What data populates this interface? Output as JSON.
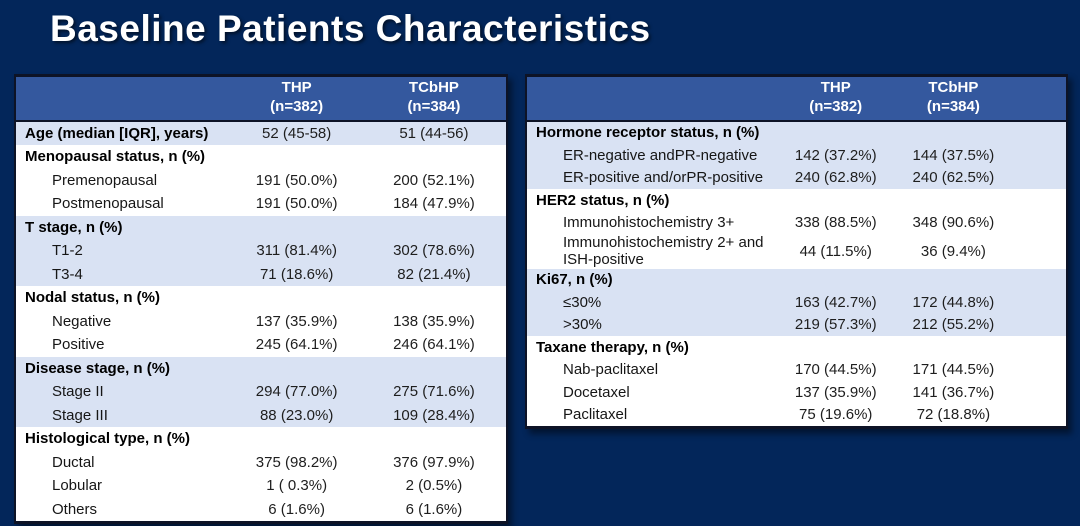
{
  "slide": {
    "title": "Baseline Patients Characteristics",
    "colors": {
      "background": "#03265A",
      "table_header": "#34589E",
      "shaded_row": "#D9E2F3",
      "plain_row": "#FFFFFF",
      "title_text": "#FFFFFF"
    }
  },
  "left_table": {
    "header": {
      "label": "",
      "thp_line1": "THP",
      "thp_line2": "(n=382)",
      "tcbhp_line1": "TCbHP",
      "tcbhp_line2": "(n=384)"
    },
    "sections": [
      {
        "shade": "blue",
        "rows": [
          {
            "label": "Age (median [IQR], years)",
            "bold": true,
            "indent": false,
            "values": [
              "52 (45-58)",
              "51 (44-56)"
            ]
          }
        ]
      },
      {
        "shade": "white",
        "rows": [
          {
            "label": "Menopausal status, n (%)",
            "bold": true,
            "indent": false,
            "values": [
              "",
              ""
            ]
          },
          {
            "label": "Premenopausal",
            "bold": false,
            "indent": true,
            "values": [
              "191 (50.0%)",
              "200 (52.1%)"
            ]
          },
          {
            "label": "Postmenopausal",
            "bold": false,
            "indent": true,
            "values": [
              "191 (50.0%)",
              "184 (47.9%)"
            ]
          }
        ]
      },
      {
        "shade": "blue",
        "rows": [
          {
            "label": "T stage, n (%)",
            "bold": true,
            "indent": false,
            "values": [
              "",
              ""
            ]
          },
          {
            "label": "T1-2",
            "bold": false,
            "indent": true,
            "values": [
              "311 (81.4%)",
              "302 (78.6%)"
            ]
          },
          {
            "label": "T3-4",
            "bold": false,
            "indent": true,
            "values": [
              "71 (18.6%)",
              "82 (21.4%)"
            ]
          }
        ]
      },
      {
        "shade": "white",
        "rows": [
          {
            "label": "Nodal status, n (%)",
            "bold": true,
            "indent": false,
            "values": [
              "",
              ""
            ]
          },
          {
            "label": "Negative",
            "bold": false,
            "indent": true,
            "values": [
              "137 (35.9%)",
              "138 (35.9%)"
            ]
          },
          {
            "label": "Positive",
            "bold": false,
            "indent": true,
            "values": [
              "245 (64.1%)",
              "246 (64.1%)"
            ]
          }
        ]
      },
      {
        "shade": "blue",
        "rows": [
          {
            "label": "Disease stage, n (%)",
            "bold": true,
            "indent": false,
            "values": [
              "",
              ""
            ]
          },
          {
            "label": "Stage II",
            "bold": false,
            "indent": true,
            "values": [
              "294 (77.0%)",
              "275 (71.6%)"
            ]
          },
          {
            "label": "Stage III",
            "bold": false,
            "indent": true,
            "values": [
              "88 (23.0%)",
              "109 (28.4%)"
            ]
          }
        ]
      },
      {
        "shade": "white",
        "rows": [
          {
            "label": "Histological type, n (%)",
            "bold": true,
            "indent": false,
            "values": [
              "",
              ""
            ]
          },
          {
            "label": "Ductal",
            "bold": false,
            "indent": true,
            "values": [
              "375 (98.2%)",
              "376 (97.9%)"
            ]
          },
          {
            "label": "Lobular",
            "bold": false,
            "indent": true,
            "values": [
              "1 ( 0.3%)",
              "2 (0.5%)"
            ]
          },
          {
            "label": "Others",
            "bold": false,
            "indent": true,
            "values": [
              "6 (1.6%)",
              "6 (1.6%)"
            ]
          }
        ]
      }
    ]
  },
  "right_table": {
    "header": {
      "label": "",
      "thp_line1": "THP",
      "thp_line2": "(n=382)",
      "tcbhp_line1": "TCbHP",
      "tcbhp_line2": "(n=384)"
    },
    "sections": [
      {
        "shade": "blue",
        "rows": [
          {
            "label": "Hormone receptor status, n (%)",
            "bold": true,
            "indent": false,
            "values": [
              "",
              ""
            ]
          },
          {
            "label": "ER-negative andPR-negative",
            "bold": false,
            "indent": true,
            "values": [
              "142 (37.2%)",
              "144 (37.5%)"
            ]
          },
          {
            "label": "ER-positive and/orPR-positive",
            "bold": false,
            "indent": true,
            "values": [
              "240 (62.8%)",
              "240 (62.5%)"
            ]
          }
        ]
      },
      {
        "shade": "white",
        "rows": [
          {
            "label": "HER2 status, n (%)",
            "bold": true,
            "indent": false,
            "values": [
              "",
              ""
            ]
          },
          {
            "label": "Immunohistochemistry 3+",
            "bold": false,
            "indent": true,
            "values": [
              "338 (88.5%)",
              "348 (90.6%)"
            ]
          },
          {
            "label": "Immunohistochemistry 2+ and\nISH-positive",
            "bold": false,
            "indent": true,
            "values": [
              "44 (11.5%)",
              "36 (9.4%)"
            ]
          }
        ]
      },
      {
        "shade": "blue",
        "rows": [
          {
            "label": "Ki67, n (%)",
            "bold": true,
            "indent": false,
            "values": [
              "",
              ""
            ]
          },
          {
            "label": "≤30%",
            "bold": false,
            "indent": true,
            "values": [
              "163 (42.7%)",
              "172 (44.8%)"
            ]
          },
          {
            "label": ">30%",
            "bold": false,
            "indent": true,
            "values": [
              "219 (57.3%)",
              "212 (55.2%)"
            ]
          }
        ]
      },
      {
        "shade": "white",
        "rows": [
          {
            "label": "Taxane therapy, n (%)",
            "bold": true,
            "indent": false,
            "values": [
              "",
              ""
            ]
          },
          {
            "label": "Nab-paclitaxel",
            "bold": false,
            "indent": true,
            "values": [
              "170 (44.5%)",
              "171 (44.5%)"
            ]
          },
          {
            "label": "Docetaxel",
            "bold": false,
            "indent": true,
            "values": [
              "137 (35.9%)",
              "141 (36.7%)"
            ]
          },
          {
            "label": "Paclitaxel",
            "bold": false,
            "indent": true,
            "values": [
              "75 (19.6%)",
              "72 (18.8%)"
            ]
          }
        ]
      }
    ]
  }
}
